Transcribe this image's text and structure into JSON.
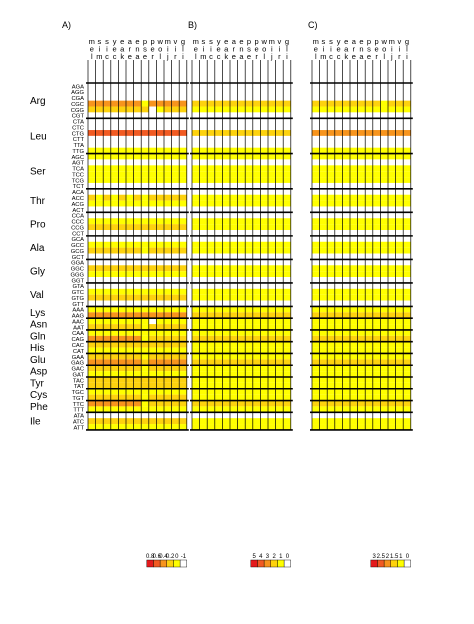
{
  "chart_data": {
    "type": "heatmap",
    "panels": [
      {
        "label": "A)",
        "legend_ticks": [
          "0.8",
          "0.6",
          "0.4",
          "0.2",
          "0",
          "-1"
        ]
      },
      {
        "label": "B)",
        "legend_ticks": [
          "5",
          "4",
          "3",
          "2",
          "1",
          "0"
        ]
      },
      {
        "label": "C)",
        "legend_ticks": [
          "3",
          "2.5",
          "2",
          "1.5",
          "1",
          "0"
        ]
      }
    ],
    "columns": [
      [
        "m",
        "e",
        "l"
      ],
      [
        "s",
        "i",
        "m"
      ],
      [
        "s",
        "i",
        "c"
      ],
      [
        "y",
        "e",
        "c"
      ],
      [
        "e",
        "a",
        "k"
      ],
      [
        "a",
        "r",
        "e"
      ],
      [
        "e",
        "n",
        "a"
      ],
      [
        "p",
        "s",
        "e"
      ],
      [
        "p",
        "e",
        "r"
      ],
      [
        "w",
        "o",
        "l"
      ],
      [
        "m",
        "i",
        "j"
      ],
      [
        "v",
        "i",
        "r"
      ],
      [
        "g",
        "l",
        "i"
      ]
    ],
    "amino_acids": [
      {
        "name": "Arg",
        "codons": [
          "AGA",
          "AGG",
          "CGA",
          "CGC",
          "CGG",
          "CGT"
        ]
      },
      {
        "name": "Leu",
        "codons": [
          "CTA",
          "CTC",
          "CTG",
          "CTT",
          "TTA",
          "TTG"
        ]
      },
      {
        "name": "Ser",
        "codons": [
          "AGC",
          "AGT",
          "TCA",
          "TCC",
          "TCG",
          "TCT"
        ]
      },
      {
        "name": "Thr",
        "codons": [
          "ACA",
          "ACC",
          "ACG",
          "ACT"
        ]
      },
      {
        "name": "Pro",
        "codons": [
          "CCA",
          "CCC",
          "CCG",
          "CCT"
        ]
      },
      {
        "name": "Ala",
        "codons": [
          "GCA",
          "GCC",
          "GCG",
          "GCT"
        ]
      },
      {
        "name": "Gly",
        "codons": [
          "GGA",
          "GGC",
          "GGG",
          "GGT"
        ]
      },
      {
        "name": "Val",
        "codons": [
          "GTA",
          "GTC",
          "GTG",
          "GTT"
        ]
      },
      {
        "name": "Lys",
        "codons": [
          "AAA",
          "AAG"
        ]
      },
      {
        "name": "Asn",
        "codons": [
          "AAC",
          "AAT"
        ]
      },
      {
        "name": "Gln",
        "codons": [
          "CAA",
          "CAG"
        ]
      },
      {
        "name": "His",
        "codons": [
          "CAC",
          "CAT"
        ]
      },
      {
        "name": "Glu",
        "codons": [
          "GAA",
          "GAG"
        ]
      },
      {
        "name": "Asp",
        "codons": [
          "GAC",
          "GAT"
        ]
      },
      {
        "name": "Tyr",
        "codons": [
          "TAC",
          "TAT"
        ]
      },
      {
        "name": "Cys",
        "codons": [
          "TGC",
          "TGT"
        ]
      },
      {
        "name": "Phe",
        "codons": [
          "TTC",
          "TTT"
        ]
      },
      {
        "name": "Ile",
        "codons": [
          "ATA",
          "ATC",
          "ATT"
        ]
      }
    ],
    "color_scale": [
      "#e31a1c",
      "#f15a22",
      "#f7941d",
      "#fdd20e",
      "#ffff00",
      "#ffffff"
    ],
    "level_note": "levels 0-5: 0 = white (lowest bin), 5 = red (highest bin)",
    "levels": {
      "A": [
        "0000000000000",
        "0000000000000",
        "0000000000000",
        "3333333133333",
        "2222222201222",
        "0000000000000",
        "0000000000000",
        "0000000000000",
        "4444444444444",
        "0000000000000",
        "0000000000000",
        "1111111111111",
        "1111111111111",
        "0000000000000",
        "1111111111111",
        "1111111111111",
        "1111111111111",
        "0000000000000",
        "0000000000000",
        "2121212122222",
        "1111111111111",
        "0000000000000",
        "0000000000000",
        "1111111111111",
        "2222222222222",
        "0000000000000",
        "0000000000000",
        "1111111111111",
        "2222222122222",
        "0000000000000",
        "0000000000000",
        "2222222222222",
        "1111111111111",
        "0000000000000",
        "0000000000000",
        "1111111111111",
        "2222222222222",
        "0000000000000",
        "1111111111111",
        "3333333333333",
        "1111111101111",
        "2222222122222",
        "1111111111111",
        "3333333122222",
        "2222222222222",
        "1111111111111",
        "2222222122222",
        "3333333233333",
        "2222222122222",
        "1111111111111",
        "2222222222222",
        "2222222222222",
        "1111111111111",
        "2222222122222",
        "3333333122222",
        "1111111111111",
        "0000000000000",
        "2222222222222",
        "1111111111111"
      ],
      "B": [
        "0000000000000",
        "0000000000000",
        "0000000000000",
        "2222222222222",
        "1111111111111",
        "0000000000000",
        "0000000000000",
        "0000000000000",
        "2222222222222",
        "0000000000000",
        "0000000000000",
        "1111111111111",
        "1111111111111",
        "0000000000000",
        "1111111111111",
        "1111111111111",
        "1111111111111",
        "0000000000000",
        "0000000000000",
        "1111111111111",
        "1111111111111",
        "0000000000000",
        "0000000000000",
        "1111111111111",
        "1111111111111",
        "0000000000000",
        "0000000000000",
        "1111111111111",
        "1111111111111",
        "0000000000000",
        "0000000000000",
        "1111111111111",
        "1111111111111",
        "0000000000000",
        "0000000000000",
        "1111111111111",
        "1111111111111",
        "0000000000000",
        "1111111111111",
        "2222222222222",
        "1111111111111",
        "1111111111111",
        "1111111111111",
        "2222222222222",
        "1111111111111",
        "1111111111111",
        "1111111111111",
        "2222222222222",
        "1111111111111",
        "1111111111111",
        "1111111111111",
        "1111111111111",
        "1111111111111",
        "1111111111111",
        "2222222222222",
        "1111111111111",
        "0000000000000",
        "1111111111111",
        "1111111111111"
      ],
      "C": [
        "0000000000000",
        "0000000000000",
        "0000000000000",
        "2222222221222",
        "1111111111111",
        "0000000000000",
        "0000000000000",
        "0000000000000",
        "3333333333333",
        "0000000000000",
        "0000000000000",
        "1111111111111",
        "1111111111111",
        "0000000000000",
        "1111111111111",
        "1111111111111",
        "1111111111111",
        "0000000000000",
        "0000000000000",
        "1111111111111",
        "1111111111111",
        "0000000000000",
        "0000000000000",
        "1111111111111",
        "1111111111111",
        "0000000000000",
        "0000000000000",
        "1111111111111",
        "1111111111111",
        "0000000000000",
        "0000000000000",
        "1111111111111",
        "1111111111111",
        "0000000000000",
        "0000000000000",
        "1111111111111",
        "1111111111111",
        "0000000000000",
        "1111111111111",
        "2222222222222",
        "1111111111111",
        "1111111111111",
        "1111111111111",
        "2222222222222",
        "1111111111111",
        "1111111111111",
        "1111111111111",
        "2222222222222",
        "1111111111111",
        "1111111111111",
        "1111111111111",
        "1111111111111",
        "1111111111111",
        "1111111111111",
        "2222222222222",
        "1111111111111",
        "0000000000000",
        "1111111111111",
        "1111111111111"
      ]
    }
  }
}
